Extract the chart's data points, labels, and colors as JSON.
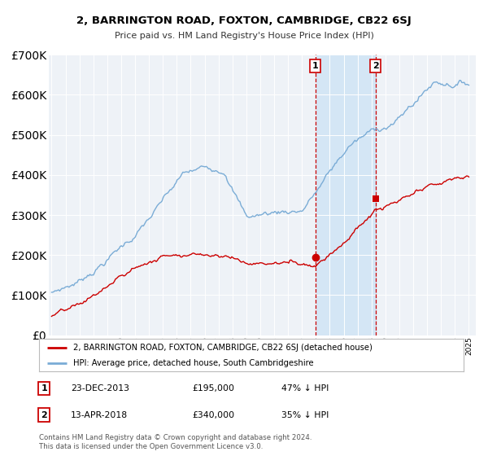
{
  "title": "2, BARRINGTON ROAD, FOXTON, CAMBRIDGE, CB22 6SJ",
  "subtitle": "Price paid vs. HM Land Registry's House Price Index (HPI)",
  "hpi_label": "HPI: Average price, detached house, South Cambridgeshire",
  "property_label": "2, BARRINGTON ROAD, FOXTON, CAMBRIDGE, CB22 6SJ (detached house)",
  "footer": "Contains HM Land Registry data © Crown copyright and database right 2024.\nThis data is licensed under the Open Government Licence v3.0.",
  "hpi_color": "#7aacd6",
  "property_color": "#cc0000",
  "sale1_date_x": 2013.97,
  "sale2_date_x": 2018.28,
  "sale1_price": 195000,
  "sale2_price": 340000,
  "ylim": [
    0,
    700000
  ],
  "xlim_start": 1994.8,
  "xlim_end": 2025.5,
  "background_color": "#eef2f7",
  "shaded_color": "#d0e4f5"
}
